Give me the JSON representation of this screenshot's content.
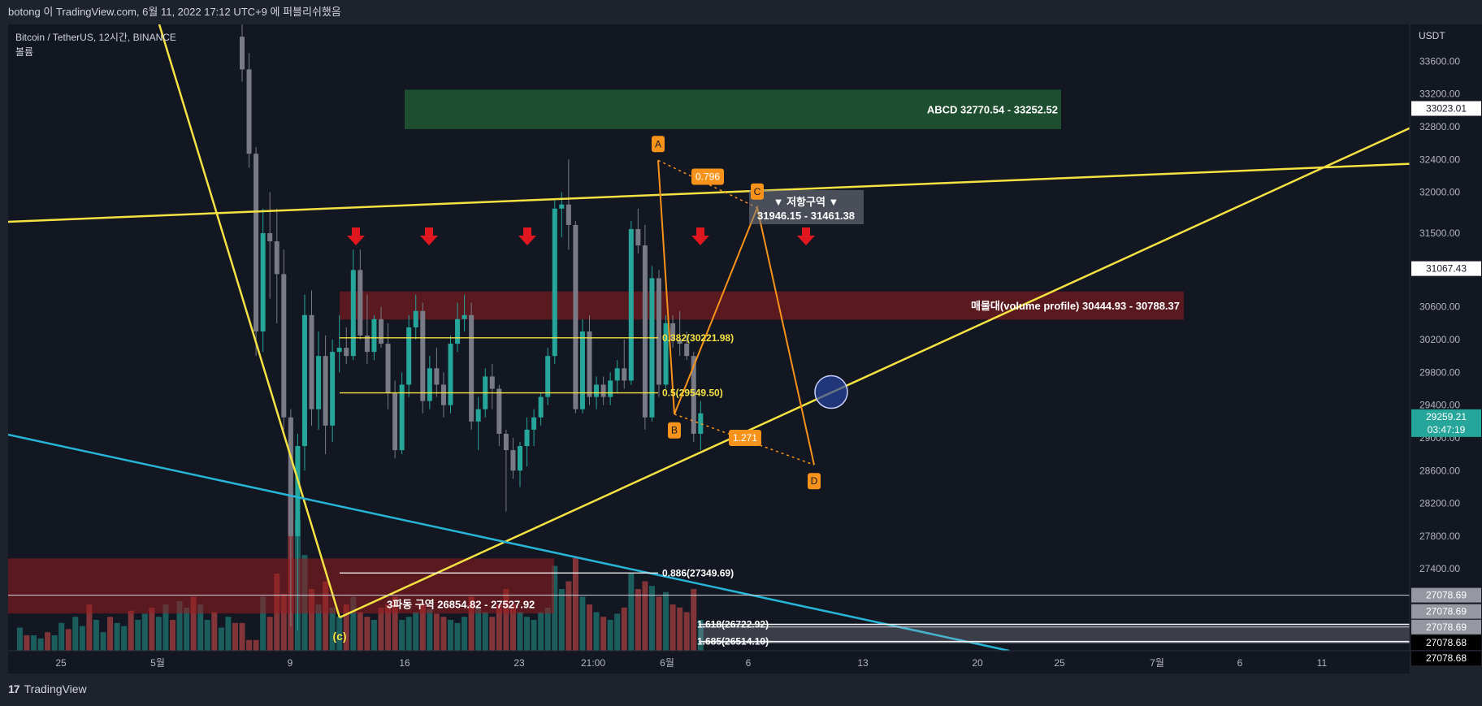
{
  "header": {
    "publish_line": "botong 이 TradingView.com, 6월 11, 2022 17:12 UTC+9 에 퍼블리쉬했음"
  },
  "legend": {
    "symbol": "Bitcoin / TetherUS, 12시간, BINANCE",
    "volume_label": "볼륨"
  },
  "footer": {
    "brand": "TradingView"
  },
  "colors": {
    "background": "#131722",
    "up": "#26a69a",
    "down": "#787b86",
    "yellow": "#f5e243",
    "cyan": "#26b5d6",
    "orange": "#f7931a",
    "red_zone": "#7f1d1d",
    "green_zone": "#1f4d2b"
  },
  "chart_data": {
    "type": "candlestick",
    "y_axis": {
      "currency": "USDT",
      "ticks": [
        "33600.00",
        "33200.00",
        "32800.00",
        "32400.00",
        "32000.00",
        "31500.00",
        "30600.00",
        "30200.00",
        "29800.00",
        "29400.00",
        "29000.00",
        "28600.00",
        "28200.00",
        "27800.00",
        "27400.00"
      ],
      "range": [
        26400,
        34050
      ]
    },
    "x_axis": {
      "ticks": [
        "25",
        "5월",
        "9",
        "16",
        "23",
        "21:00",
        "6월",
        "6",
        "13",
        "20",
        "25",
        "7월",
        "6",
        "11"
      ]
    },
    "price_labels": [
      {
        "value": "33023.01",
        "price": 33023.01,
        "style": "light"
      },
      {
        "value": "31067.43",
        "price": 31067.43,
        "style": "light"
      },
      {
        "value": "29259.21",
        "price": 29259.21,
        "style": "current",
        "sub": "03:47:19"
      },
      {
        "value": "27078.69",
        "price": 27078.69,
        "style": "grey"
      },
      {
        "value": "27078.69",
        "price": 26880,
        "style": "grey"
      },
      {
        "value": "27078.69",
        "price": 26690,
        "style": "grey"
      },
      {
        "value": "27078.68",
        "price": 26500,
        "style": "dark"
      },
      {
        "value": "27078.68",
        "price": 26310,
        "style": "dark"
      }
    ],
    "zones": [
      {
        "label": "ABCD 32770.54 - 33252.52",
        "low": 32770.54,
        "high": 33252.52,
        "color": "green"
      },
      {
        "label": "매물대(volume profile) 30444.93 - 30788.37",
        "low": 30444.93,
        "high": 30788.37,
        "color": "red"
      },
      {
        "label": "3파동 구역 26854.82 - 27527.92",
        "low": 26854.82,
        "high": 27527.92,
        "color": "red"
      }
    ],
    "resistance_box": {
      "title": "▼ 저항구역 ▼",
      "range": "31946.15 - 31461.38"
    },
    "fib_levels": [
      {
        "label": "0.382(30221.98)",
        "price": 30221.98,
        "color": "yellow"
      },
      {
        "label": "0.5(29549.50)",
        "price": 29549.5,
        "color": "yellow"
      },
      {
        "label": "0.886(27349.69)",
        "price": 27349.69,
        "color": "white"
      },
      {
        "label": "1.618(26722.92)",
        "price": 26722.92,
        "color": "white"
      },
      {
        "label": "1.685(26514.10)",
        "price": 26514.1,
        "color": "white"
      }
    ],
    "pattern_points": [
      {
        "label": "A",
        "price": 32390
      },
      {
        "label": "B",
        "price": 29290
      },
      {
        "label": "C",
        "price": 31810
      },
      {
        "label": "D",
        "price": 28670
      }
    ],
    "pattern_ratios": [
      "0.796",
      "1.271"
    ],
    "wave_label": "(c)",
    "candles": [
      [
        33900,
        34050,
        33350,
        33500
      ],
      [
        33500,
        33700,
        32300,
        32470
      ],
      [
        32470,
        32550,
        30000,
        30300
      ],
      [
        30300,
        31800,
        30050,
        31500
      ],
      [
        31500,
        32000,
        30700,
        31400
      ],
      [
        31400,
        31800,
        30400,
        31000
      ],
      [
        31000,
        31300,
        29100,
        29250
      ],
      [
        29250,
        29350,
        26700,
        27800
      ],
      [
        27800,
        29050,
        26650,
        28900
      ],
      [
        28900,
        30750,
        28600,
        30500
      ],
      [
        30500,
        30800,
        29150,
        29350
      ],
      [
        29350,
        30300,
        29100,
        30000
      ],
      [
        30000,
        30250,
        28800,
        29150
      ],
      [
        29150,
        30200,
        28950,
        30050
      ],
      [
        30050,
        30500,
        29800,
        30100
      ],
      [
        30100,
        30350,
        29900,
        30000
      ],
      [
        30000,
        31300,
        29950,
        31050
      ],
      [
        31050,
        31300,
        30200,
        30250
      ],
      [
        30250,
        30750,
        29900,
        30050
      ],
      [
        30050,
        30500,
        29950,
        30450
      ],
      [
        30450,
        30600,
        30100,
        30150
      ],
      [
        30150,
        30400,
        29350,
        29550
      ],
      [
        29550,
        29700,
        28750,
        28850
      ],
      [
        28850,
        29800,
        28800,
        29650
      ],
      [
        29650,
        30500,
        29500,
        30350
      ],
      [
        30350,
        30750,
        30200,
        30550
      ],
      [
        30550,
        30650,
        29300,
        29450
      ],
      [
        29450,
        30000,
        29350,
        29850
      ],
      [
        29850,
        30100,
        29500,
        29650
      ],
      [
        29650,
        29800,
        29250,
        29400
      ],
      [
        29400,
        30250,
        29300,
        30150
      ],
      [
        30150,
        30650,
        30050,
        30450
      ],
      [
        30450,
        30750,
        30300,
        30500
      ],
      [
        30500,
        30650,
        29100,
        29200
      ],
      [
        29200,
        29500,
        28850,
        29350
      ],
      [
        29350,
        29850,
        29250,
        29750
      ],
      [
        29750,
        29900,
        29350,
        29600
      ],
      [
        29600,
        29650,
        28900,
        29050
      ],
      [
        29050,
        29100,
        28100,
        28850
      ],
      [
        28850,
        29000,
        28500,
        28600
      ],
      [
        28600,
        28950,
        28400,
        28900
      ],
      [
        28900,
        29250,
        28650,
        29100
      ],
      [
        29100,
        29350,
        28900,
        29250
      ],
      [
        29250,
        29550,
        29150,
        29500
      ],
      [
        29500,
        30100,
        29400,
        30000
      ],
      [
        30000,
        31900,
        29900,
        31800
      ],
      [
        31800,
        32000,
        31450,
        31850
      ],
      [
        31850,
        32400,
        31300,
        31600
      ],
      [
        31600,
        31650,
        29300,
        29350
      ],
      [
        29350,
        30450,
        29300,
        30300
      ],
      [
        30300,
        30500,
        29400,
        29500
      ],
      [
        29500,
        29750,
        29350,
        29650
      ],
      [
        29650,
        29750,
        29400,
        29500
      ],
      [
        29500,
        29800,
        29400,
        29700
      ],
      [
        29700,
        29950,
        29550,
        29850
      ],
      [
        29850,
        30200,
        29600,
        29700
      ],
      [
        29700,
        31650,
        29650,
        31550
      ],
      [
        31550,
        31800,
        31250,
        31350
      ],
      [
        31350,
        31600,
        29100,
        29250
      ],
      [
        29250,
        31100,
        29200,
        30950
      ],
      [
        30950,
        31050,
        29500,
        29650
      ],
      [
        29650,
        30500,
        29600,
        30400
      ],
      [
        30400,
        30500,
        30100,
        30200
      ],
      [
        30200,
        30550,
        30000,
        30150
      ],
      [
        30150,
        30300,
        29950,
        30000
      ],
      [
        30000,
        30050,
        28950,
        29050
      ],
      [
        29050,
        29450,
        28850,
        29300
      ]
    ],
    "volumes": [
      0.18,
      0.07,
      0.07,
      0.35,
      0.22,
      0.5,
      0.37,
      1.0,
      0.85,
      0.62,
      0.4,
      0.3,
      0.45,
      0.28,
      0.22,
      0.3,
      0.35,
      0.25,
      0.22,
      0.2,
      0.28,
      0.3,
      0.35,
      0.2,
      0.22,
      0.25,
      0.3,
      0.27,
      0.24,
      0.22,
      0.2,
      0.18,
      0.22,
      0.35,
      0.28,
      0.25,
      0.22,
      0.3,
      0.4,
      0.3,
      0.25,
      0.22,
      0.2,
      0.25,
      0.28,
      0.55,
      0.4,
      0.45,
      0.6,
      0.35,
      0.3,
      0.25,
      0.22,
      0.2,
      0.24,
      0.28,
      0.5,
      0.4,
      0.45,
      0.42,
      0.35,
      0.38,
      0.3,
      0.28,
      0.25,
      0.4,
      0.2
    ]
  }
}
